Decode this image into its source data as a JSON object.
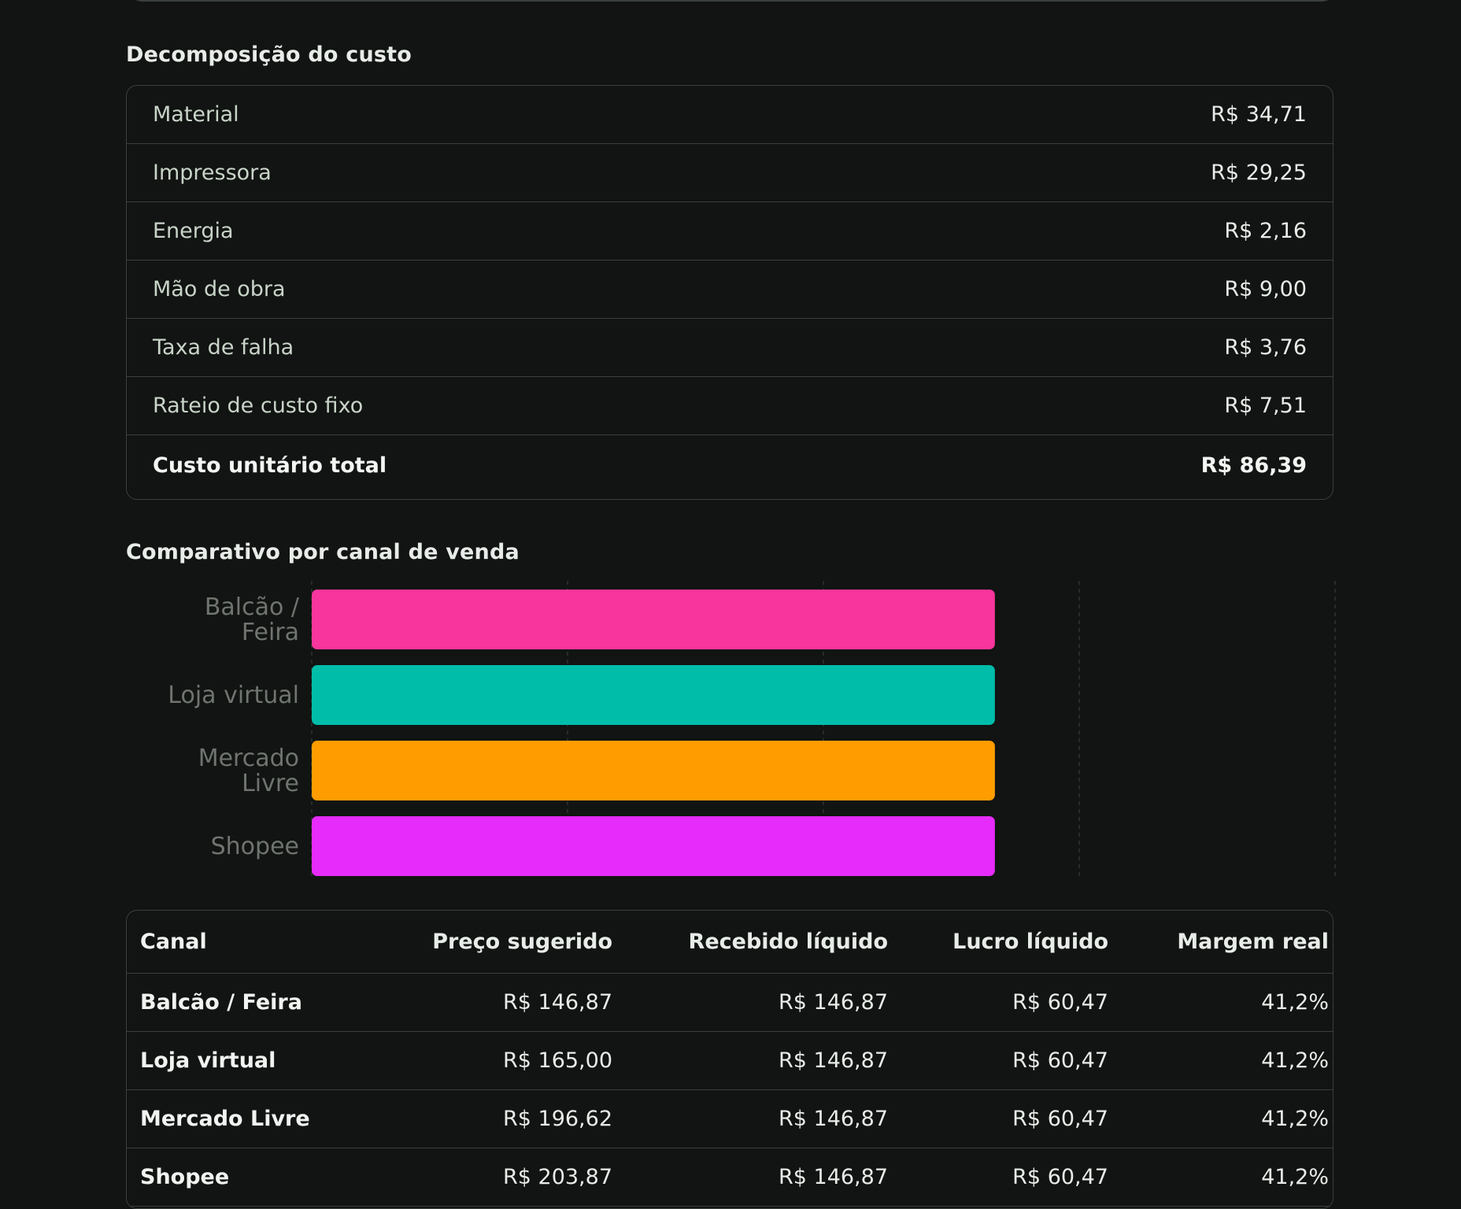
{
  "cost_breakdown": {
    "title": "Decomposição do custo",
    "items": [
      {
        "label": "Material",
        "value": "R$ 34,71"
      },
      {
        "label": "Impressora",
        "value": "R$ 29,25"
      },
      {
        "label": "Energia",
        "value": "R$ 2,16"
      },
      {
        "label": "Mão de obra",
        "value": "R$ 9,00"
      },
      {
        "label": "Taxa de falha",
        "value": "R$ 3,76"
      },
      {
        "label": "Rateio de custo fixo",
        "value": "R$ 7,51"
      }
    ],
    "total": {
      "label": "Custo unitário total",
      "value": "R$ 86,39"
    }
  },
  "channel_chart": {
    "title": "Comparativo por canal de venda"
  },
  "chart_data": {
    "type": "bar",
    "orientation": "horizontal",
    "categories": [
      "Balcão / Feira",
      "Loja virtual",
      "Mercado Livre",
      "Shopee"
    ],
    "series": [
      {
        "values": [
          146.87,
          146.87,
          146.87,
          146.87
        ]
      }
    ],
    "colors": [
      "#f7359c",
      "#00bdaa",
      "#ff9c00",
      "#e62bfa"
    ],
    "xlim": [
      0,
      220
    ],
    "grid": true,
    "legend": "none"
  },
  "channel_table": {
    "headers": [
      "Canal",
      "Preço sugerido",
      "Recebido líquido",
      "Lucro líquido",
      "Margem real"
    ],
    "rows": [
      [
        "Balcão / Feira",
        "R$ 146,87",
        "R$ 146,87",
        "R$ 60,47",
        "41,2%"
      ],
      [
        "Loja virtual",
        "R$ 165,00",
        "R$ 146,87",
        "R$ 60,47",
        "41,2%"
      ],
      [
        "Mercado Livre",
        "R$ 196,62",
        "R$ 146,87",
        "R$ 60,47",
        "41,2%"
      ],
      [
        "Shopee",
        "R$ 203,87",
        "R$ 146,87",
        "R$ 60,47",
        "41,2%"
      ]
    ]
  }
}
